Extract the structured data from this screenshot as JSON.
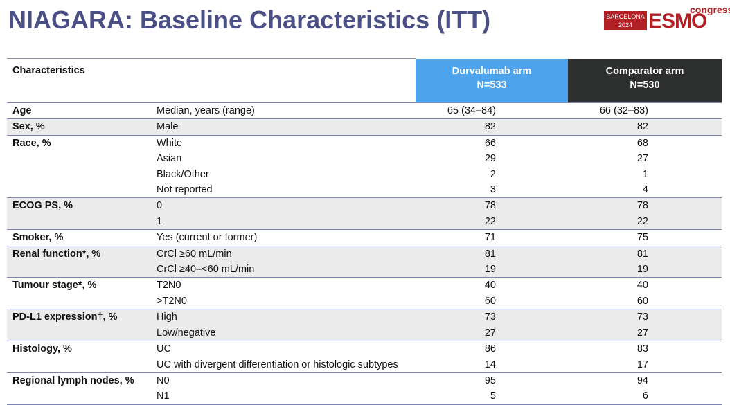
{
  "title": "NIAGARA: Baseline Characteristics (ITT)",
  "logo": {
    "city": "BARCELONA",
    "year": "2024",
    "brand": "ESMO",
    "suffix": "congress"
  },
  "header": {
    "characteristics": "Characteristics",
    "durvalumab_arm": "Durvalumab arm",
    "durvalumab_n": "N=533",
    "comparator_arm": "Comparator arm",
    "comparator_n": "N=530"
  },
  "rows": [
    {
      "cat": "Age",
      "sub": "Median, years (range)",
      "d": "65 (34–84)",
      "c": "66 (32–83)"
    },
    {
      "cat": "Sex, %",
      "sub": "Male",
      "d": "82",
      "c": "82"
    },
    {
      "cat": "Race, %",
      "sub": "White",
      "d": "66",
      "c": "68"
    },
    {
      "cat": "",
      "sub": "Asian",
      "d": "29",
      "c": "27"
    },
    {
      "cat": "",
      "sub": "Black/Other",
      "d": "2",
      "c": "1"
    },
    {
      "cat": "",
      "sub": "Not reported",
      "d": "3",
      "c": "4"
    },
    {
      "cat": "ECOG PS, %",
      "sub": "0",
      "d": "78",
      "c": "78"
    },
    {
      "cat": "",
      "sub": "1",
      "d": "22",
      "c": "22"
    },
    {
      "cat": "Smoker, %",
      "sub": "Yes (current or former)",
      "d": "71",
      "c": "75"
    },
    {
      "cat": "Renal function*, %",
      "sub": "CrCl ≥60 mL/min",
      "d": "81",
      "c": "81"
    },
    {
      "cat": "",
      "sub": "CrCl ≥40–<60 mL/min",
      "d": "19",
      "c": "19"
    },
    {
      "cat": "Tumour stage*, %",
      "sub": "T2N0",
      "d": "40",
      "c": "40"
    },
    {
      "cat": "",
      "sub": ">T2N0",
      "d": "60",
      "c": "60"
    },
    {
      "cat": "PD-L1 expression†, %",
      "sub": "High",
      "d": "73",
      "c": "73"
    },
    {
      "cat": "",
      "sub": "Low/negative",
      "d": "27",
      "c": "27"
    },
    {
      "cat": "Histology, %",
      "sub": "UC",
      "d": "86",
      "c": "83"
    },
    {
      "cat": "",
      "sub": "UC with divergent differentiation or histologic subtypes",
      "d": "14",
      "c": "17"
    },
    {
      "cat": "Regional lymph nodes, %",
      "sub": "N0",
      "d": "95",
      "c": "94"
    },
    {
      "cat": "",
      "sub": "N1",
      "d": "5",
      "c": "6"
    }
  ],
  "colors": {
    "title": "#4a4f86",
    "durvalumab_header": "#4da4ec",
    "comparator_header": "#2e302f",
    "shade": "#ebebeb",
    "brand": "#b21f24"
  }
}
